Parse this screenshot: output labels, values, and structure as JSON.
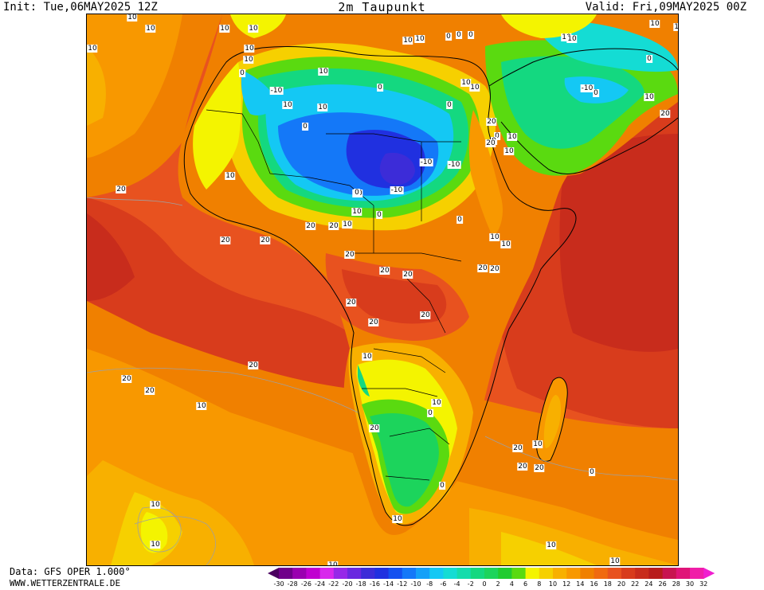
{
  "header": {
    "init": "Init: Tue,06MAY2025 12Z",
    "title": "2m Taupunkt",
    "valid": "Valid: Fri,09MAY2025 00Z"
  },
  "footer": {
    "data_source": "Data: GFS OPER 1.000°",
    "website": "WWW.WETTERZENTRALE.DE"
  },
  "legend": {
    "ticks": [
      "-30",
      "-28",
      "-26",
      "-24",
      "-22",
      "-20",
      "-18",
      "-16",
      "-14",
      "-12",
      "-10",
      "-8",
      "-6",
      "-4",
      "-2",
      "0",
      "2",
      "4",
      "6",
      "8",
      "10",
      "12",
      "14",
      "16",
      "18",
      "20",
      "22",
      "24",
      "26",
      "28",
      "30",
      "32"
    ],
    "colors": [
      "#4b0060",
      "#70008a",
      "#9a00b0",
      "#c000d0",
      "#d828ec",
      "#9628e8",
      "#6a28e0",
      "#3c2cd8",
      "#2030e0",
      "#1450f0",
      "#1478f8",
      "#14a0f8",
      "#14c8f4",
      "#14dcd4",
      "#14dcac",
      "#14d880",
      "#1cd45c",
      "#20cc30",
      "#5ada10",
      "#f4f400",
      "#f6d000",
      "#f8b000",
      "#f89800",
      "#f08000",
      "#f06a10",
      "#e8521f",
      "#d83c1c",
      "#c82c1c",
      "#b81c1c",
      "#c81450",
      "#e01478",
      "#f01ea8",
      "#f01ed0"
    ]
  },
  "map_labels": [
    {
      "text": "10"
    },
    {
      "text": "10"
    },
    {
      "text": "10"
    },
    {
      "text": "10"
    },
    {
      "text": "10"
    },
    {
      "text": "0"
    },
    {
      "text": "0"
    },
    {
      "text": "0"
    },
    {
      "text": "10"
    },
    {
      "text": "10"
    },
    {
      "text": "10"
    },
    {
      "text": "10"
    },
    {
      "text": "10"
    },
    {
      "text": "10"
    },
    {
      "text": "10"
    },
    {
      "text": "0"
    },
    {
      "text": "10"
    },
    {
      "text": "0"
    },
    {
      "text": "-10"
    },
    {
      "text": "10"
    },
    {
      "text": "10"
    },
    {
      "text": "0"
    },
    {
      "text": "10"
    },
    {
      "text": "10"
    },
    {
      "text": "0"
    },
    {
      "text": "10"
    },
    {
      "text": "-10"
    },
    {
      "text": "0"
    },
    {
      "text": "10"
    },
    {
      "text": "0"
    },
    {
      "text": "20"
    },
    {
      "text": "0"
    },
    {
      "text": "20"
    },
    {
      "text": "10"
    },
    {
      "text": "10"
    },
    {
      "text": "0"
    },
    {
      "text": "20"
    },
    {
      "text": "10"
    },
    {
      "text": "-10"
    },
    {
      "text": "-10"
    },
    {
      "text": "20"
    },
    {
      "text": "10"
    },
    {
      "text": "-10"
    },
    {
      "text": "0"
    },
    {
      "text": "0"
    },
    {
      "text": "10"
    },
    {
      "text": "20"
    },
    {
      "text": "20"
    },
    {
      "text": "20"
    },
    {
      "text": "10"
    },
    {
      "text": "20"
    },
    {
      "text": "0"
    },
    {
      "text": "10"
    },
    {
      "text": "10"
    },
    {
      "text": "20"
    },
    {
      "text": "20"
    },
    {
      "text": "20"
    },
    {
      "text": "20"
    },
    {
      "text": "20"
    },
    {
      "text": "20"
    },
    {
      "text": "20"
    },
    {
      "text": "20"
    },
    {
      "text": "10"
    },
    {
      "text": "20"
    },
    {
      "text": "20"
    },
    {
      "text": "20"
    },
    {
      "text": "10"
    },
    {
      "text": "10"
    },
    {
      "text": "0"
    },
    {
      "text": "20"
    },
    {
      "text": "10"
    },
    {
      "text": "20"
    },
    {
      "text": "20"
    },
    {
      "text": "20"
    },
    {
      "text": "0"
    },
    {
      "text": "0"
    },
    {
      "text": "10"
    },
    {
      "text": "10"
    },
    {
      "text": "10"
    },
    {
      "text": "10"
    },
    {
      "text": "10"
    },
    {
      "text": "10"
    }
  ]
}
